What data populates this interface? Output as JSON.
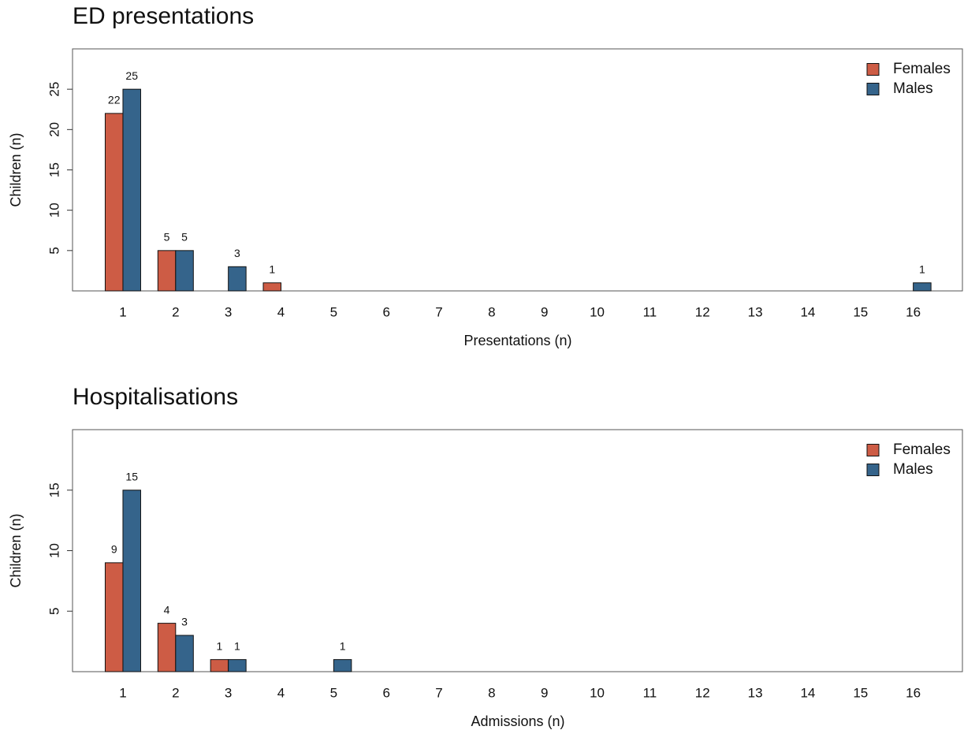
{
  "chart_data": [
    {
      "type": "bar",
      "title": "ED presentations",
      "x_label": "Presentations (n)",
      "y_label": "Children (n)",
      "categories": [
        1,
        2,
        3,
        4,
        5,
        6,
        7,
        8,
        9,
        10,
        11,
        12,
        13,
        14,
        15,
        16
      ],
      "series": [
        {
          "name": "Females",
          "color": "#cd5c45",
          "values": [
            22,
            5,
            0,
            1,
            0,
            0,
            0,
            0,
            0,
            0,
            0,
            0,
            0,
            0,
            0,
            0
          ]
        },
        {
          "name": "Males",
          "color": "#35648b",
          "values": [
            25,
            5,
            3,
            0,
            0,
            0,
            0,
            0,
            0,
            0,
            0,
            0,
            0,
            0,
            0,
            1
          ]
        }
      ],
      "ylim": [
        0,
        30
      ],
      "yticks": [
        5,
        10,
        15,
        20,
        25
      ],
      "legend": "top-right"
    },
    {
      "type": "bar",
      "title": "Hospitalisations",
      "x_label": "Admissions (n)",
      "y_label": "Children (n)",
      "categories": [
        1,
        2,
        3,
        4,
        5,
        6,
        7,
        8,
        9,
        10,
        11,
        12,
        13,
        14,
        15,
        16
      ],
      "series": [
        {
          "name": "Females",
          "color": "#cd5c45",
          "values": [
            9,
            4,
            1,
            0,
            0,
            0,
            0,
            0,
            0,
            0,
            0,
            0,
            0,
            0,
            0,
            0
          ]
        },
        {
          "name": "Males",
          "color": "#35648b",
          "values": [
            15,
            3,
            1,
            0,
            1,
            0,
            0,
            0,
            0,
            0,
            0,
            0,
            0,
            0,
            0,
            0
          ]
        }
      ],
      "ylim": [
        0,
        20
      ],
      "yticks": [
        5,
        10,
        15
      ],
      "legend": "top-right"
    }
  ]
}
